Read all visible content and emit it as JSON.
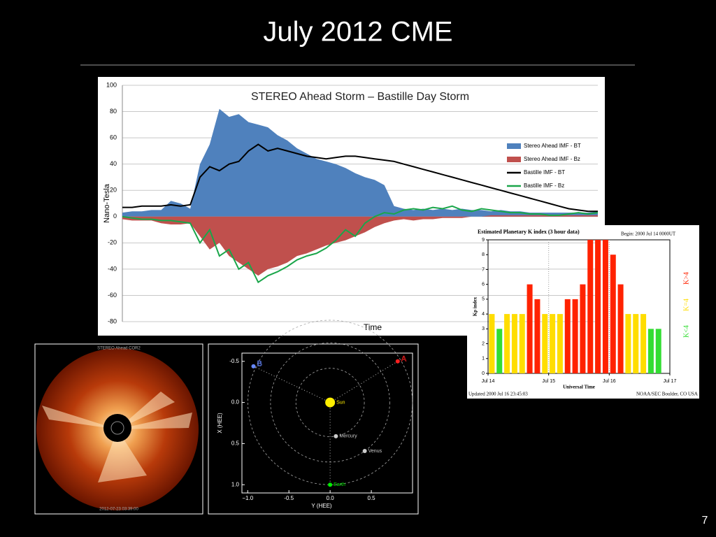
{
  "title": "July 2012 CME",
  "page_number": "7",
  "chart_data": [
    {
      "type": "line",
      "title": "STEREO Ahead Storm – Bastille Day Storm",
      "x_label": "Time",
      "y_label": "Nano-Tesla",
      "ylim": [
        -80,
        100
      ],
      "yticks": [
        -80,
        -60,
        -40,
        -20,
        0,
        20,
        40,
        60,
        80,
        100
      ],
      "grid": true,
      "legend": "right",
      "series": [
        {
          "name": "Stereo Ahead IMF - BT",
          "kind": "area",
          "color": "#4f81bd",
          "values": [
            3,
            4,
            4,
            5,
            5,
            12,
            10,
            6,
            40,
            55,
            82,
            76,
            78,
            72,
            70,
            68,
            62,
            58,
            52,
            48,
            44,
            42,
            40,
            37,
            33,
            30,
            28,
            24,
            8,
            6,
            5,
            6,
            5,
            6,
            5,
            6,
            5,
            5,
            4,
            5,
            4,
            4,
            3,
            3,
            3,
            3,
            3,
            3,
            3,
            4
          ]
        },
        {
          "name": "Stereo Ahead IMF - Bz",
          "kind": "area",
          "color": "#c0504d",
          "values": [
            -2,
            -3,
            -3,
            -3,
            -5,
            -6,
            -6,
            -5,
            -15,
            -25,
            -20,
            -30,
            -35,
            -40,
            -45,
            -40,
            -38,
            -35,
            -30,
            -28,
            -25,
            -22,
            -20,
            -18,
            -15,
            -12,
            -8,
            -5,
            -3,
            -2,
            -3,
            -2,
            -2,
            -1,
            -1,
            -1,
            0,
            0,
            1,
            1,
            1,
            1,
            1,
            1,
            1,
            1,
            1,
            1,
            1,
            1
          ]
        },
        {
          "name": "Bastille IMF - BT",
          "kind": "line",
          "color": "#000000",
          "values": [
            7,
            7,
            8,
            8,
            8,
            9,
            8,
            9,
            30,
            38,
            35,
            40,
            42,
            50,
            55,
            50,
            52,
            50,
            48,
            46,
            45,
            44,
            45,
            46,
            46,
            45,
            44,
            43,
            42,
            40,
            38,
            36,
            34,
            32,
            30,
            28,
            26,
            24,
            22,
            20,
            18,
            16,
            14,
            12,
            10,
            8,
            6,
            5,
            4,
            4
          ]
        },
        {
          "name": "Bastille IMF - Bz",
          "kind": "line",
          "color": "#1aa64a",
          "values": [
            0,
            -1,
            -2,
            -2,
            -3,
            -3,
            -4,
            -5,
            -20,
            -10,
            -30,
            -25,
            -40,
            -35,
            -50,
            -45,
            -42,
            -38,
            -33,
            -30,
            -28,
            -24,
            -18,
            -10,
            -15,
            -5,
            0,
            3,
            2,
            5,
            6,
            5,
            7,
            6,
            8,
            5,
            4,
            6,
            5,
            4,
            3,
            3,
            2,
            2,
            1,
            1,
            2,
            3,
            2,
            3
          ]
        }
      ]
    },
    {
      "type": "bar",
      "title": "Estimated Planetary K index (3 hour data)",
      "subtitle": "Begin:  2000 Jul 14 0000UT",
      "x_label": "Universal Time",
      "y_label": "Kp index",
      "ylim": [
        0,
        9
      ],
      "yticks": [
        0,
        1,
        2,
        3,
        4,
        5,
        6,
        7,
        8,
        9
      ],
      "xlim": [
        0,
        24
      ],
      "xticks": [
        {
          "value": 0,
          "label": "Jul 14"
        },
        {
          "value": 8,
          "label": "Jul 15"
        },
        {
          "value": 16,
          "label": "Jul 16"
        },
        {
          "value": 24,
          "label": "Jul 17"
        }
      ],
      "values": [
        4,
        3,
        4,
        4,
        4,
        6,
        5,
        4,
        4,
        4,
        5,
        5,
        6,
        9,
        9,
        9,
        8,
        6,
        4,
        4,
        4,
        3,
        3,
        null
      ],
      "colors": [
        "#ffdd00",
        "#33dd33",
        "#ffdd00",
        "#ffdd00",
        "#ffdd00",
        "#ff2200",
        "#ff2200",
        "#ffdd00",
        "#ffdd00",
        "#ffdd00",
        "#ff2200",
        "#ff2200",
        "#ff2200",
        "#ff2200",
        "#ff2200",
        "#ff2200",
        "#ff2200",
        "#ff2200",
        "#ffdd00",
        "#ffdd00",
        "#ffdd00",
        "#33dd33",
        "#33dd33",
        "#33dd33"
      ],
      "key": [
        {
          "label": "K>4",
          "color": "#ff2200"
        },
        {
          "label": "K=4",
          "color": "#ffdd00"
        },
        {
          "label": "K<4",
          "color": "#33dd33"
        }
      ],
      "footer_left": "Updated 2000 Jul 16 23:45:03",
      "footer_right": "NOAA/SEC Boulder, CO USA"
    },
    {
      "type": "scatter",
      "x_label": "Y (HEE)",
      "y_label": "X (HEE)",
      "xlim": [
        -1.07,
        1.0
      ],
      "ylim": [
        -0.6,
        1.1
      ],
      "y_inverted": true,
      "xticks": [
        {
          "value": -1,
          "label": "−1.0"
        },
        -0.5,
        {
          "value": 0,
          "label": "0.0"
        },
        0.5
      ],
      "yticks": [
        -0.5,
        {
          "value": 0,
          "label": "0.0"
        },
        0.5,
        {
          "value": 1,
          "label": "1.0"
        }
      ],
      "points": [
        {
          "label": "Sun",
          "x": 0,
          "y": 0,
          "color": "#ffee00"
        },
        {
          "label": "Mercury",
          "x": 0.07,
          "y": 0.41,
          "color": "#cccccc"
        },
        {
          "label": "Venus",
          "x": 0.42,
          "y": 0.59,
          "color": "#cccccc"
        },
        {
          "label": "Earth",
          "x": 0,
          "y": 1.0,
          "color": "#00ee00"
        },
        {
          "label": "A",
          "x": 0.82,
          "y": -0.5,
          "color": "#ff2020"
        },
        {
          "label": "B",
          "x": -0.93,
          "y": -0.44,
          "color": "#6688ff"
        }
      ]
    }
  ],
  "coronagraph": {
    "title": "STEREO Ahead COR2",
    "timestamp": "2012-07-23 03:39:00"
  }
}
